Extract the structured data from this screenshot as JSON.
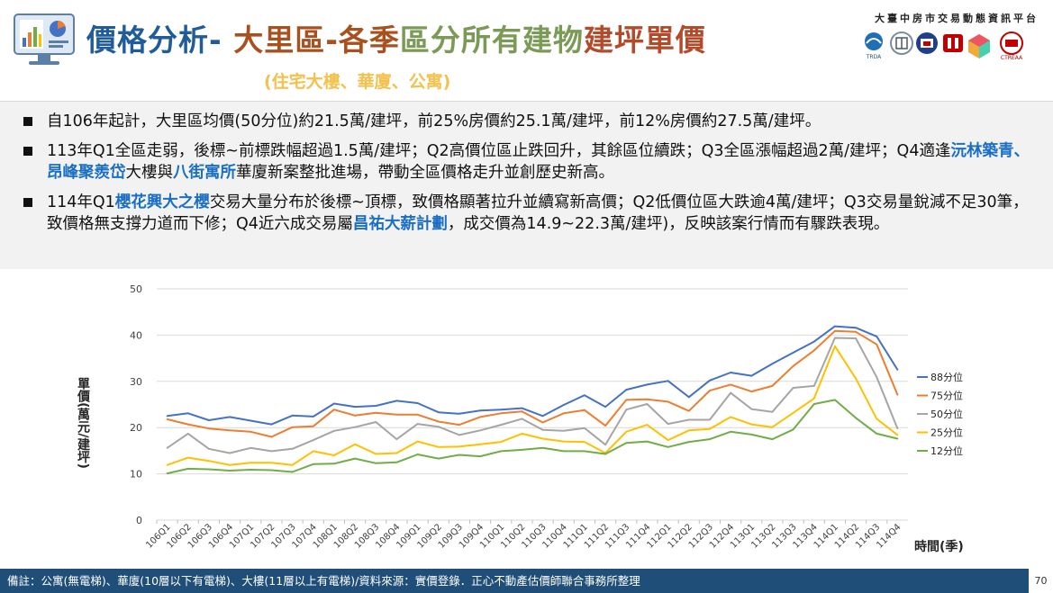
{
  "header": {
    "title_parts": [
      {
        "text": "價格分析- ",
        "color": "#1f5c99"
      },
      {
        "text": "大里區-各季",
        "color": "#a8501e"
      },
      {
        "text": "區分所有建物",
        "color": "#7a9a55"
      },
      {
        "text": "建坪單價",
        "color": "#b34a2a"
      }
    ],
    "subtitle": "(住宅大樓、華廈、公寓)",
    "org_name": "大臺中房市交易動態資訊平台",
    "logo_text": "TRDA",
    "logo_text2": "CTREAA"
  },
  "bullets": [
    [
      {
        "t": "自106年起計，大里區均價(50分位)約21.5萬/建坪，前25%房價約25.1萬/建坪，前12%房價約27.5萬/建坪。"
      }
    ],
    [
      {
        "t": "113年Q1全區走弱，後標~前標跌幅超過1.5萬/建坪；Q2高價位區止跌回升，其餘區位續跌；Q3全區漲幅超過2萬/建坪；Q4適逢"
      },
      {
        "t": "沅林築青、昂峰聚羨岱",
        "hl": true
      },
      {
        "t": "大樓與"
      },
      {
        "t": "八街寓所",
        "hl": true
      },
      {
        "t": "華廈新案整批進場，帶動全區價格走升並創歷史新高。"
      }
    ],
    [
      {
        "t": "114年Q1"
      },
      {
        "t": "櫻花興大之櫻",
        "hl": true
      },
      {
        "t": "交易大量分布於後標~頂標，致價格顯著拉升並續寫新高價；Q2低價位區大跌逾4萬/建坪；Q3交易量銳減不足30筆，致價格無支撐力道而下修；Q4近六成交易屬"
      },
      {
        "t": "昌祐大薪計劃",
        "hl": true
      },
      {
        "t": "，成交價為14.9~22.3萬/建坪)，反映該案行情而有驟跌表現。"
      }
    ]
  ],
  "footer": {
    "note": "備註：公寓(無電梯)、華廈(10層以下有電梯)、大樓(11層以上有電梯)/資料來源：實價登錄．正心不動產估價師聯合事務所整理",
    "page": "70"
  },
  "chart_data": {
    "type": "line",
    "xlabel": "時間(季)",
    "ylabel": "單價(萬元/建坪)",
    "ylim": [
      0,
      50
    ],
    "yticks": [
      0,
      10,
      20,
      30,
      40,
      50
    ],
    "grid": true,
    "legend": "right",
    "categories": [
      "106Q1",
      "106Q2",
      "106Q3",
      "106Q4",
      "107Q1",
      "107Q2",
      "107Q3",
      "107Q4",
      "108Q1",
      "108Q2",
      "108Q3",
      "108Q4",
      "109Q1",
      "109Q2",
      "109Q3",
      "109Q4",
      "110Q1",
      "110Q2",
      "110Q3",
      "110Q4",
      "111Q1",
      "111Q2",
      "111Q3",
      "111Q4",
      "112Q1",
      "112Q2",
      "112Q3",
      "112Q4",
      "113Q1",
      "113Q2",
      "113Q3",
      "113Q4",
      "114Q1",
      "114Q2",
      "114Q3",
      "114Q4"
    ],
    "series": [
      {
        "name": "88分位",
        "color": "#4472c4",
        "values": [
          22.5,
          23.1,
          21.6,
          22.3,
          21.5,
          20.7,
          22.6,
          22.4,
          25.2,
          24.5,
          24.7,
          25.8,
          25.3,
          23.3,
          23.0,
          23.7,
          23.9,
          24.2,
          22.5,
          24.9,
          27.0,
          24.5,
          28.2,
          29.3,
          30.1,
          26.6,
          30.2,
          31.9,
          31.2,
          33.8,
          36.2,
          38.6,
          41.9,
          41.6,
          39.7,
          32.5
        ]
      },
      {
        "name": "75分位",
        "color": "#ed7d31",
        "values": [
          21.8,
          20.7,
          19.8,
          19.4,
          19.1,
          18.0,
          20.1,
          20.3,
          23.9,
          22.6,
          23.2,
          22.8,
          22.8,
          21.3,
          20.6,
          22.3,
          23.1,
          23.5,
          21.1,
          23.1,
          23.8,
          20.4,
          26.0,
          26.1,
          25.6,
          23.6,
          28.0,
          29.3,
          27.8,
          29.0,
          33.3,
          36.7,
          40.9,
          40.7,
          38.0,
          27.1
        ]
      },
      {
        "name": "50分位",
        "color": "#a5a5a5",
        "values": [
          15.6,
          18.7,
          15.4,
          14.5,
          15.6,
          14.9,
          15.4,
          17.3,
          19.3,
          20.1,
          21.2,
          17.5,
          20.8,
          20.2,
          18.4,
          19.4,
          20.6,
          21.9,
          19.5,
          19.3,
          19.9,
          16.3,
          23.9,
          25.1,
          20.8,
          21.7,
          21.7,
          27.5,
          24.0,
          23.4,
          28.6,
          29.0,
          39.4,
          39.3,
          30.9,
          19.8
        ]
      },
      {
        "name": "25分位",
        "color": "#ffc000",
        "values": [
          11.9,
          13.5,
          12.8,
          11.9,
          12.4,
          12.4,
          11.9,
          14.9,
          14.0,
          16.4,
          14.3,
          14.5,
          17.0,
          15.8,
          15.9,
          16.4,
          16.9,
          18.7,
          17.6,
          17.0,
          16.9,
          14.5,
          19.1,
          20.6,
          17.3,
          19.4,
          19.7,
          22.3,
          20.7,
          20.1,
          23.2,
          26.3,
          37.6,
          30.6,
          21.9,
          18.4
        ]
      },
      {
        "name": "12分位",
        "color": "#70ad47",
        "values": [
          10.1,
          11.1,
          11.0,
          10.7,
          10.9,
          10.8,
          10.4,
          12.1,
          12.2,
          13.3,
          12.3,
          12.5,
          14.2,
          13.3,
          14.1,
          13.8,
          14.9,
          15.2,
          15.6,
          14.9,
          14.9,
          14.3,
          16.7,
          17.0,
          15.8,
          16.9,
          17.5,
          19.1,
          18.5,
          17.5,
          19.6,
          25.1,
          26.0,
          22.1,
          18.7,
          17.6
        ]
      }
    ]
  }
}
